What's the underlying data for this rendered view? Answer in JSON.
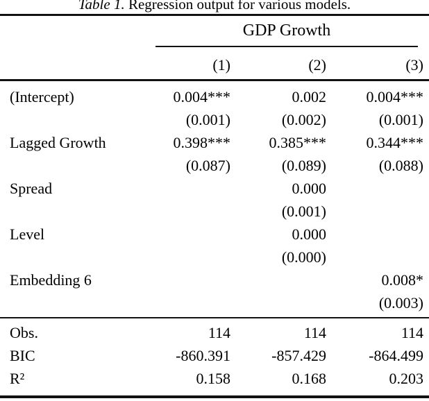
{
  "title": {
    "prefix": "Table 1.",
    "text": " Regression output for various models."
  },
  "colors": {
    "text": "#000000",
    "rule": "#121212",
    "background": "#ffffff"
  },
  "table": {
    "span_header": "GDP Growth",
    "column_headers": [
      "(1)",
      "(2)",
      "(3)"
    ],
    "coef_rows": [
      {
        "label": "(Intercept)",
        "values": [
          "0.004***",
          "0.002",
          "0.004***"
        ]
      },
      {
        "label": "",
        "values": [
          "(0.001)",
          "(0.002)",
          "(0.001)"
        ]
      },
      {
        "label": "Lagged Growth",
        "values": [
          "0.398***",
          "0.385***",
          "0.344***"
        ]
      },
      {
        "label": "",
        "values": [
          "(0.087)",
          "(0.089)",
          "(0.088)"
        ]
      },
      {
        "label": "Spread",
        "values": [
          "",
          "0.000",
          ""
        ]
      },
      {
        "label": "",
        "values": [
          "",
          "(0.001)",
          ""
        ]
      },
      {
        "label": "Level",
        "values": [
          "",
          "0.000",
          ""
        ]
      },
      {
        "label": "",
        "values": [
          "",
          "(0.000)",
          ""
        ]
      },
      {
        "label": "Embedding 6",
        "values": [
          "",
          "",
          "0.008*"
        ]
      },
      {
        "label": "",
        "values": [
          "",
          "",
          "(0.003)"
        ]
      }
    ],
    "stat_rows": [
      {
        "label": "Obs.",
        "values": [
          "114",
          "114",
          "114"
        ]
      },
      {
        "label": "BIC",
        "values": [
          "-860.391",
          "-857.429",
          "-864.499"
        ]
      },
      {
        "label": "R²",
        "values": [
          "0.158",
          "0.168",
          "0.203"
        ]
      }
    ]
  }
}
